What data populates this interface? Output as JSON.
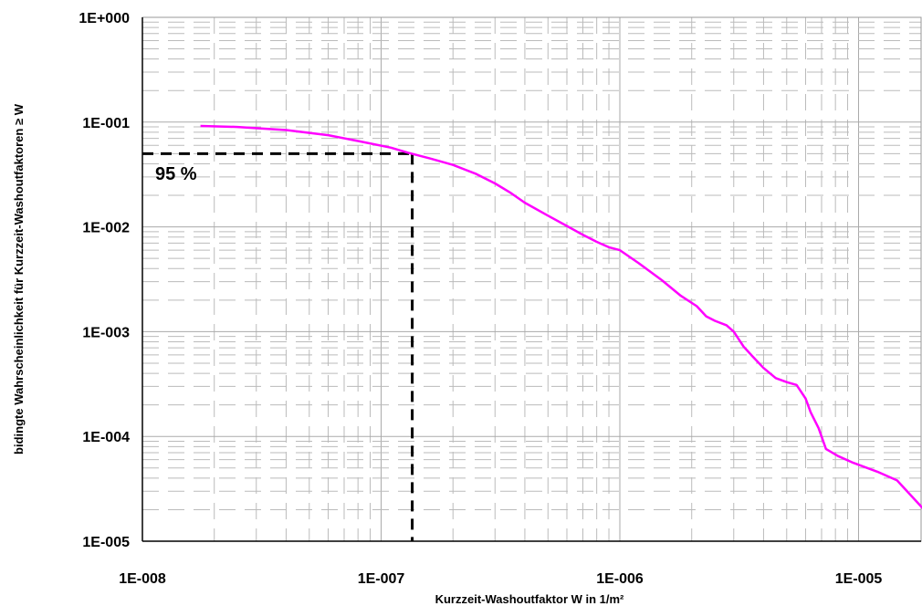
{
  "chart_data": {
    "type": "line",
    "title": "",
    "xlabel": "Kurzzeit-Washoutfaktor W in 1/m²",
    "ylabel": "bidingte Wahrscheinlichkeit für Kurzzeit-Washoutfaktoren ≥ W",
    "xscale": "log",
    "yscale": "log",
    "xlim": [
      1e-08,
      1.9e-05
    ],
    "ylim": [
      1e-05,
      1
    ],
    "grid": true,
    "x_tick_labels": [
      "1E-008",
      "1E-007",
      "1E-006",
      "1E-005"
    ],
    "y_tick_labels": [
      "1E+000",
      "1E-001",
      "1E-002",
      "1E-003",
      "1E-004",
      "1E-005"
    ],
    "series": [
      {
        "color": "#ff00ff",
        "x": [
          1.75e-08,
          2.5e-08,
          4e-08,
          6e-08,
          8e-08,
          1.1e-07,
          1.3e-07,
          1.6e-07,
          2e-07,
          2.5e-07,
          3e-07,
          3.5e-07,
          4e-07,
          5e-07,
          6e-07,
          7e-07,
          8e-07,
          9e-07,
          1e-06,
          1.2e-06,
          1.5e-06,
          1.8e-06,
          2.1e-06,
          2.3e-06,
          2.5e-06,
          2.8e-06,
          3e-06,
          3.3e-06,
          3.6e-06,
          4e-06,
          4.5e-06,
          5e-06,
          5.5e-06,
          6e-06,
          6.3e-06,
          6.8e-06,
          7.3e-06,
          8.2e-06,
          9.5e-06,
          1.2e-05,
          1.45e-05,
          1.9e-05
        ],
        "y": [
          0.092,
          0.09,
          0.084,
          0.075,
          0.066,
          0.057,
          0.051,
          0.045,
          0.039,
          0.032,
          0.026,
          0.021,
          0.017,
          0.0128,
          0.0102,
          0.0084,
          0.0072,
          0.0064,
          0.006,
          0.0045,
          0.0031,
          0.0022,
          0.00175,
          0.0014,
          0.00127,
          0.00115,
          0.001,
          0.00072,
          0.00058,
          0.00045,
          0.00036,
          0.00033,
          0.00031,
          0.00023,
          0.00017,
          0.00012,
          7.6e-05,
          6.5e-05,
          5.6e-05,
          4.6e-05,
          3.8e-05,
          1.95e-05
        ]
      }
    ],
    "reference_line": {
      "x": 1.35e-07,
      "y": 0.05
    },
    "annotations": [
      "95 %"
    ]
  }
}
